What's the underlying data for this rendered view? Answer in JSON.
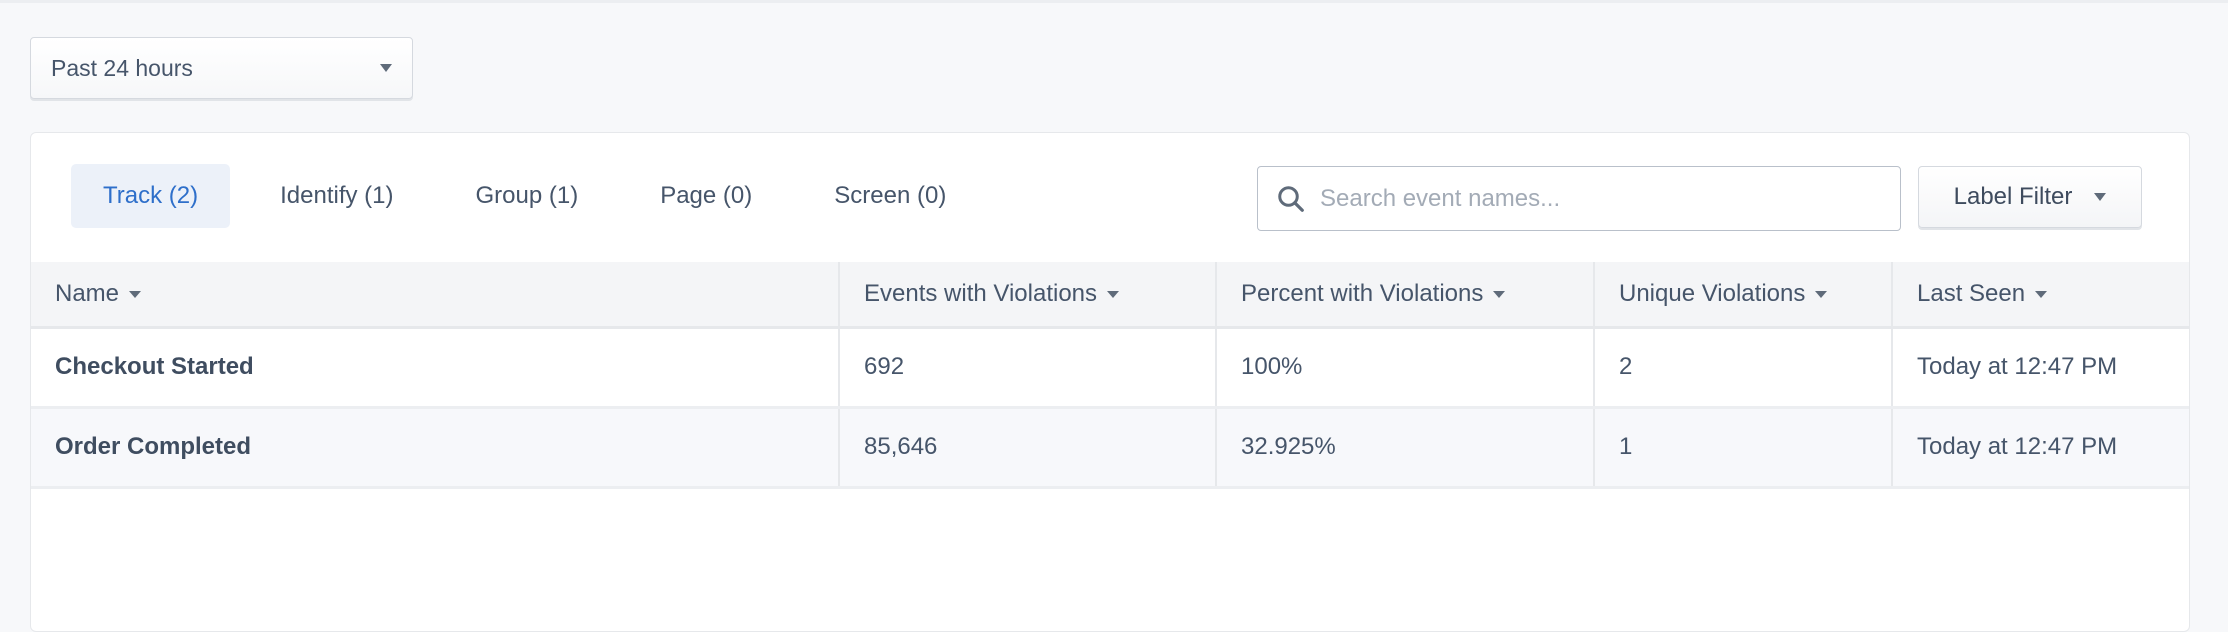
{
  "time_range": {
    "selected": "Past 24 hours"
  },
  "tabs": [
    {
      "label": "Track (2)",
      "active": true
    },
    {
      "label": "Identify (1)",
      "active": false
    },
    {
      "label": "Group (1)",
      "active": false
    },
    {
      "label": "Page (0)",
      "active": false
    },
    {
      "label": "Screen (0)",
      "active": false
    }
  ],
  "search": {
    "placeholder": "Search event names...",
    "value": ""
  },
  "label_filter": {
    "label": "Label Filter"
  },
  "table": {
    "columns": [
      "Name",
      "Events with Violations",
      "Percent with Violations",
      "Unique Violations",
      "Last Seen"
    ],
    "rows": [
      {
        "name": "Checkout Started",
        "events": "692",
        "percent": "100%",
        "unique": "2",
        "last_seen": "Today at 12:47 PM"
      },
      {
        "name": "Order Completed",
        "events": "85,646",
        "percent": "32.925%",
        "unique": "1",
        "last_seen": "Today at 12:47 PM"
      }
    ]
  },
  "colors": {
    "accent": "#2e6fca",
    "active_tab_bg": "#ecf1f9",
    "text": "#46556a"
  }
}
